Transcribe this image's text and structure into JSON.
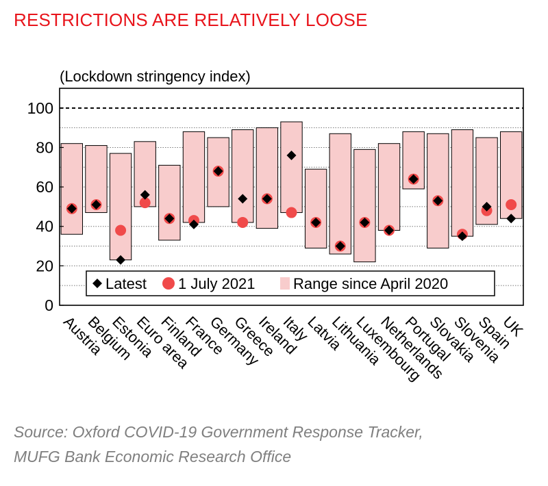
{
  "header": {
    "title": "RESTRICTIONS ARE RELATIVELY LOOSE"
  },
  "footer": {
    "source_line1": "Source: Oxford COVID-19 Government Response Tracker,",
    "source_line2": "MUFG Bank Economic Research Office"
  },
  "colors": {
    "title": "#e8141b",
    "range_fill": "#f8cccc",
    "july_marker": "#f04a4a",
    "latest_marker": "#000000",
    "source_text": "#7f7f7f"
  },
  "chart_data": {
    "type": "bar",
    "ylabel": "(Lockdown stringency index)",
    "ylim": [
      0,
      110
    ],
    "yticks": [
      0,
      20,
      40,
      60,
      80,
      100
    ],
    "reference_line": 100,
    "grid": true,
    "legend_position": "bottom",
    "legend": {
      "latest": "Latest",
      "july": "1 July 2021",
      "range": "Range since April 2020"
    },
    "categories": [
      "Austria",
      "Belgium",
      "Estonia",
      "Euro area",
      "Finland",
      "France",
      "Germany",
      "Greece",
      "Ireland",
      "Italy",
      "Latvia",
      "Lithuania",
      "Luxembourg",
      "Netherlands",
      "Portugal",
      "Slovakia",
      "Slovenia",
      "Spain",
      "UK"
    ],
    "series": [
      {
        "name": "Range since April 2020",
        "kind": "range",
        "low": [
          36,
          47,
          23,
          50,
          33,
          42,
          50,
          42,
          39,
          47,
          29,
          26,
          22,
          38,
          59,
          29,
          35,
          41,
          44
        ],
        "high": [
          82,
          81,
          77,
          83,
          71,
          88,
          85,
          89,
          90,
          93,
          69,
          87,
          79,
          82,
          88,
          87,
          89,
          85,
          88
        ]
      },
      {
        "name": "Latest",
        "kind": "diamond",
        "values": [
          49,
          51,
          23,
          56,
          44,
          41,
          68,
          54,
          54,
          76,
          42,
          30,
          42,
          38,
          64,
          53,
          35,
          50,
          44
        ]
      },
      {
        "name": "1 July 2021",
        "kind": "dot",
        "values": [
          49,
          51,
          38,
          52,
          44,
          43,
          68,
          42,
          54,
          47,
          42,
          30,
          42,
          38,
          64,
          53,
          36,
          48,
          51
        ]
      }
    ]
  }
}
